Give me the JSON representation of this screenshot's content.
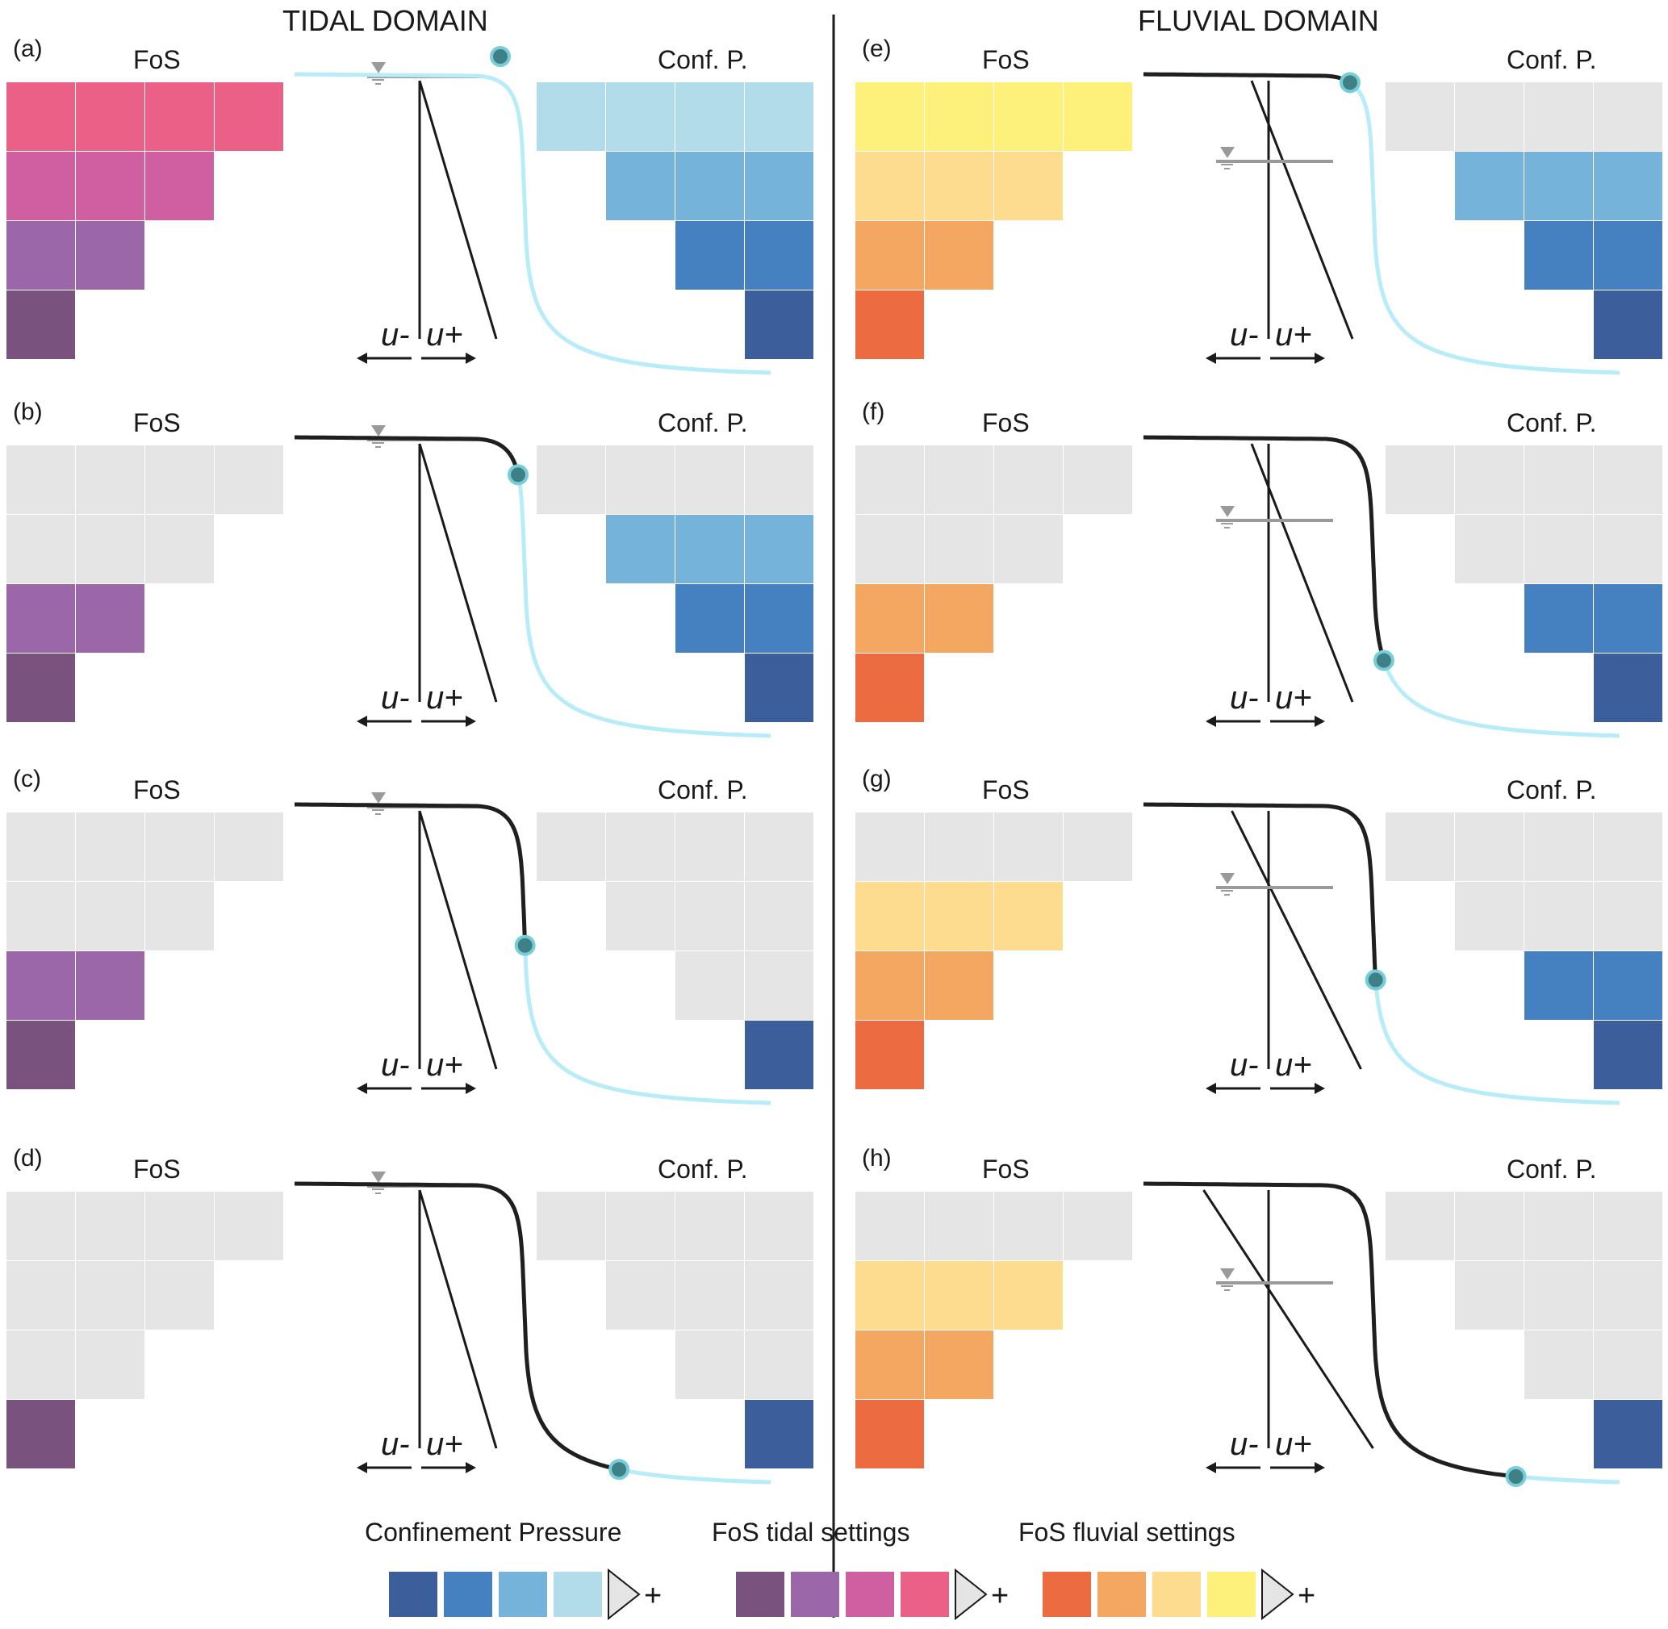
{
  "titles": {
    "left": "TIDAL DOMAIN",
    "right": "FLUVIAL DOMAIN"
  },
  "colors": {
    "grey": "#e5e5e5",
    "cp": [
      "#3c5e9a",
      "#4581c0",
      "#76b3da",
      "#b3dcea"
    ],
    "tidal": [
      "#7a527e",
      "#9c67a8",
      "#cf5fa1",
      "#ea6086"
    ],
    "fluvial": [
      "#ed6b41",
      "#f4a760",
      "#fddb8f",
      "#fdf07b"
    ],
    "curve_light": "#b7ecf8",
    "curve_dark": "#1f1f1f",
    "dot": "#3f8087",
    "dot_ring": "#77ced8",
    "water": "#9a9a9a"
  },
  "panel_common": {
    "fos_title": "FoS",
    "cp_title": "Conf. P.",
    "u_minus": "u-",
    "u_plus": "u+"
  },
  "panels": [
    {
      "label": "(a)",
      "domain": "tidal",
      "fos_levels": [
        4,
        3,
        2,
        1
      ],
      "cp_levels": [
        4,
        3,
        2,
        1
      ],
      "point_t": 0.0,
      "u_line": "steep",
      "water_level": "top"
    },
    {
      "label": "(b)",
      "domain": "tidal",
      "fos_levels": [
        0,
        0,
        2,
        1
      ],
      "cp_levels": [
        0,
        3,
        2,
        1
      ],
      "point_t": 0.35,
      "u_line": "steep",
      "water_level": "top"
    },
    {
      "label": "(c)",
      "domain": "tidal",
      "fos_levels": [
        0,
        0,
        2,
        1
      ],
      "cp_levels": [
        0,
        0,
        0,
        1
      ],
      "point_t": 0.5,
      "u_line": "steep",
      "water_level": "top"
    },
    {
      "label": "(d)",
      "domain": "tidal",
      "fos_levels": [
        0,
        0,
        0,
        1
      ],
      "cp_levels": [
        0,
        0,
        0,
        1
      ],
      "point_t": 0.78,
      "u_line": "steep",
      "water_level": "top"
    },
    {
      "label": "(e)",
      "domain": "fluvial",
      "fos_levels": [
        4,
        3,
        2,
        1
      ],
      "cp_levels": [
        0,
        3,
        2,
        1
      ],
      "point_t": 0.3,
      "u_line": "mid",
      "water_level": "upper"
    },
    {
      "label": "(f)",
      "domain": "fluvial",
      "fos_levels": [
        0,
        0,
        2,
        1
      ],
      "cp_levels": [
        0,
        0,
        2,
        1
      ],
      "point_t": 0.62,
      "u_line": "mid",
      "water_level": "middle"
    },
    {
      "label": "(g)",
      "domain": "fluvial",
      "fos_levels": [
        0,
        3,
        2,
        1
      ],
      "cp_levels": [
        0,
        0,
        2,
        1
      ],
      "point_t": 0.55,
      "u_line": "shallow",
      "water_level": "lower"
    },
    {
      "label": "(h)",
      "domain": "fluvial",
      "fos_levels": [
        0,
        3,
        2,
        1
      ],
      "cp_levels": [
        0,
        0,
        0,
        1
      ],
      "point_t": 0.85,
      "u_line": "shallowest",
      "water_level": "lowest"
    }
  ],
  "legend": [
    {
      "title": "Confinement Pressure",
      "colors": [
        "#3c5e9a",
        "#4581c0",
        "#76b3da",
        "#b3dcea"
      ],
      "sign": "+"
    },
    {
      "title": "FoS tidal settings",
      "colors": [
        "#7a527e",
        "#9c67a8",
        "#cf5fa1",
        "#ea6086"
      ],
      "sign": "+"
    },
    {
      "title": "FoS fluvial settings",
      "colors": [
        "#ed6b41",
        "#f4a760",
        "#fddb8f",
        "#fdf07b"
      ],
      "sign": "+"
    }
  ]
}
